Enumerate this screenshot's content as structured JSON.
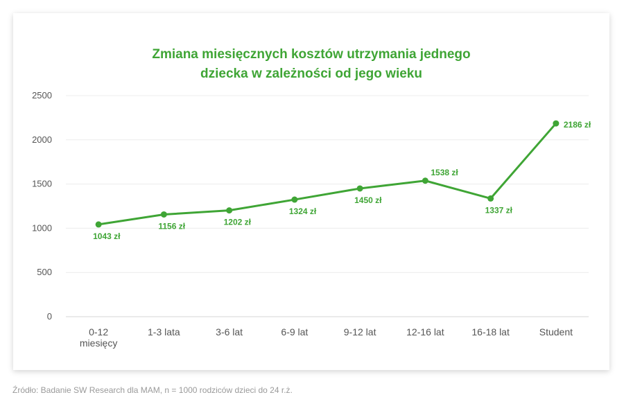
{
  "chart_data": {
    "type": "line",
    "title_lines": [
      "Zmiana miesięcznych kosztów utrzymania jednego",
      "dziecka w zależności od jego wieku"
    ],
    "categories": [
      [
        "0-12",
        "miesięcy"
      ],
      [
        "1-3 lata"
      ],
      [
        "3-6 lat"
      ],
      [
        "6-9 lat"
      ],
      [
        "9-12 lat"
      ],
      [
        "12-16 lat"
      ],
      [
        "16-18 lat"
      ],
      [
        "Student"
      ]
    ],
    "values": [
      1043,
      1156,
      1202,
      1324,
      1450,
      1538,
      1337,
      2186
    ],
    "data_labels": [
      "1043 zł",
      "1156 zł",
      "1202 zł",
      "1324 zł",
      "1450 zł",
      "1538 zł",
      "1337 zł",
      "2186 zł"
    ],
    "yticks": [
      "0",
      "500",
      "1000",
      "1500",
      "2000",
      "2500"
    ],
    "ylim": [
      0,
      2500
    ],
    "grid": true,
    "color": "#3fa535"
  },
  "source": "Źródło: Badanie SW Research dla MAM, n = 1000 rodziców dzieci do 24 r.ż."
}
